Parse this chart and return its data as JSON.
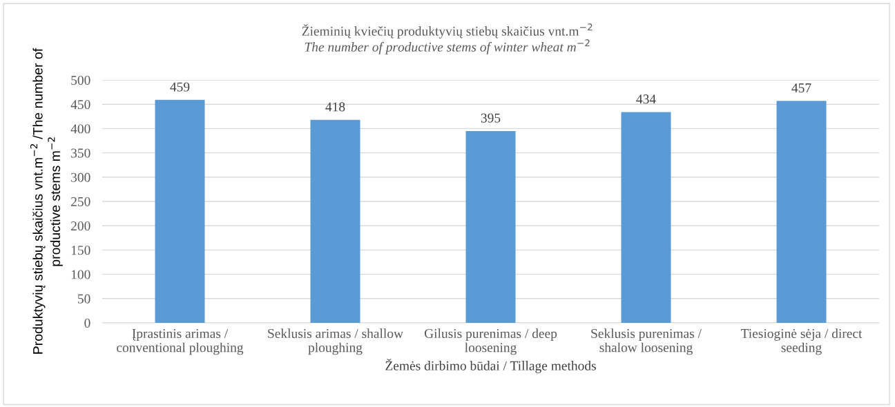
{
  "chart_data": {
    "type": "bar",
    "title": "Žieminių kviečių produktyvių stiebų skaičius vnt.m$^{−2}$",
    "subtitle": "The number of productive stems of winter wheat m$^{−2}$",
    "xlabel": "Žemės dirbimo būdai / Tillage methods",
    "ylabel": "Produktyvių stiebų skaičius vnt.m$^{−2}$ /The number of\nproductive stems m$^{−2}$",
    "categories": [
      "Įprastinis arimas /\nconventional ploughing",
      "Seklusis arimas / shallow\nploughing",
      "Gilusis purenimas / deep\nloosening",
      "Seklusis purenimas /\nshalow loosening",
      "Tiesioginė sėja / direct\nseeding"
    ],
    "values": [
      459,
      418,
      395,
      434,
      457
    ],
    "color": "#5b9bd5",
    "data_labels": true,
    "ylim": [
      0,
      500
    ],
    "yticks": [
      0,
      50,
      100,
      150,
      200,
      250,
      300,
      350,
      400,
      450,
      500
    ],
    "grid": "y",
    "legend": false
  }
}
